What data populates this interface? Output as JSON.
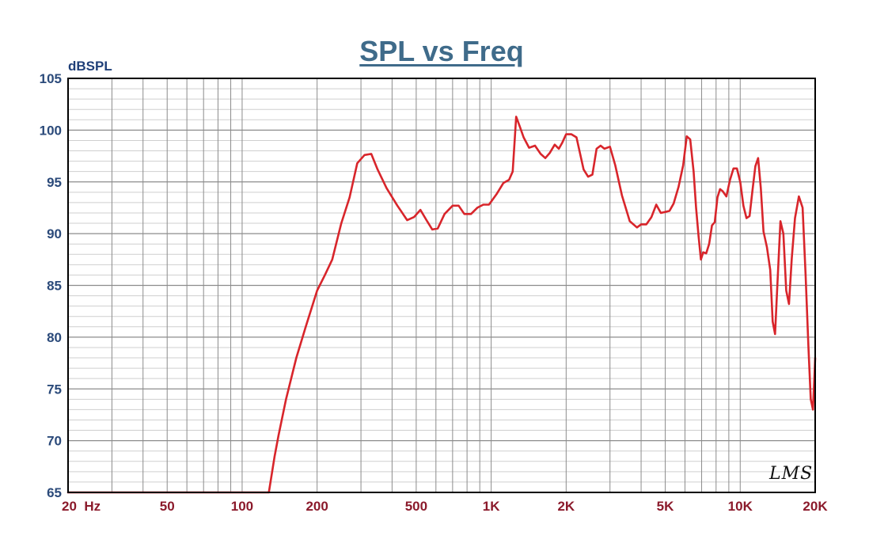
{
  "colors": {
    "title": "#3f6b8a",
    "ylabel": "#1f3f78",
    "ytick": "#2b4a7a",
    "xtick": "#8b1a2b",
    "curve": "#d8252b",
    "grid_major": "#8c8c8c",
    "grid_minor": "#cfcfcf",
    "frame": "#000000"
  },
  "watermark": "LMS",
  "chart_data": {
    "type": "line",
    "title": "SPL vs Freq",
    "ylabel": "dBSPL",
    "xlabel": "",
    "xscale": "log",
    "xlim": [
      20,
      20000
    ],
    "ylim": [
      65,
      105
    ],
    "grid": true,
    "yticks": [
      {
        "value": 105,
        "label": "105"
      },
      {
        "value": 100,
        "label": "100"
      },
      {
        "value": 95,
        "label": "95"
      },
      {
        "value": 90,
        "label": "90"
      },
      {
        "value": 85,
        "label": "85"
      },
      {
        "value": 80,
        "label": "80"
      },
      {
        "value": 75,
        "label": "75"
      },
      {
        "value": 70,
        "label": "70"
      },
      {
        "value": 65,
        "label": "65"
      }
    ],
    "xticks": [
      {
        "value": 20,
        "label": "20  Hz"
      },
      {
        "value": 50,
        "label": "50"
      },
      {
        "value": 100,
        "label": "100"
      },
      {
        "value": 200,
        "label": "200"
      },
      {
        "value": 500,
        "label": "500"
      },
      {
        "value": 1000,
        "label": "1K"
      },
      {
        "value": 2000,
        "label": "2K"
      },
      {
        "value": 5000,
        "label": "5K"
      },
      {
        "value": 10000,
        "label": "10K"
      },
      {
        "value": 20000,
        "label": "20K"
      }
    ],
    "series": [
      {
        "x": [
          20,
          30,
          50,
          80,
          120,
          128,
          135,
          140,
          150,
          165,
          180,
          200,
          215,
          230,
          250,
          270,
          290,
          310,
          330,
          350,
          380,
          420,
          460,
          490,
          520,
          550,
          580,
          610,
          650,
          700,
          740,
          780,
          830,
          880,
          930,
          980,
          1050,
          1120,
          1180,
          1220,
          1260,
          1300,
          1350,
          1420,
          1500,
          1580,
          1650,
          1720,
          1800,
          1870,
          1930,
          2000,
          2100,
          2200,
          2350,
          2450,
          2550,
          2650,
          2750,
          2850,
          3000,
          3150,
          3350,
          3600,
          3850,
          4000,
          4200,
          4400,
          4600,
          4800,
          5000,
          5200,
          5400,
          5650,
          5900,
          6100,
          6300,
          6500,
          6650,
          6800,
          6950,
          7100,
          7300,
          7500,
          7700,
          7900,
          8100,
          8300,
          8500,
          8800,
          9100,
          9400,
          9700,
          10000,
          10300,
          10600,
          10900,
          11200,
          11500,
          11800,
          12100,
          12400,
          12800,
          13200,
          13500,
          13800,
          14100,
          14500,
          14900,
          15300,
          15700,
          16100,
          16600,
          17200,
          17800,
          18300,
          18800,
          19200,
          19600,
          20000
        ],
        "y": [
          65,
          65,
          65,
          65,
          65,
          65,
          68.5,
          70.5,
          74,
          78,
          81,
          84.5,
          86,
          87.5,
          91,
          93.5,
          96.8,
          97.6,
          97.7,
          96.2,
          94.4,
          92.7,
          91.3,
          91.6,
          92.3,
          91.3,
          90.4,
          90.5,
          91.9,
          92.7,
          92.7,
          91.9,
          91.9,
          92.5,
          92.8,
          92.8,
          93.8,
          94.9,
          95.2,
          96,
          101.3,
          100.4,
          99.3,
          98.3,
          98.5,
          97.7,
          97.3,
          97.8,
          98.6,
          98.2,
          98.8,
          99.6,
          99.6,
          99.3,
          96.2,
          95.5,
          95.7,
          98.2,
          98.5,
          98.2,
          98.4,
          96.6,
          93.7,
          91.2,
          90.6,
          90.9,
          90.9,
          91.6,
          92.8,
          92,
          92.1,
          92.2,
          92.9,
          94.5,
          96.6,
          99.4,
          99.1,
          96,
          92.5,
          89.8,
          87.5,
          88.2,
          88.1,
          89,
          90.8,
          91.1,
          93.5,
          94.3,
          94.1,
          93.6,
          95.2,
          96.3,
          96.3,
          95,
          92.7,
          91.5,
          91.7,
          94.2,
          96.5,
          97.3,
          94.4,
          90.2,
          88.7,
          86.5,
          81.5,
          80.3,
          85,
          91.2,
          90,
          84.5,
          83.2,
          87.6,
          91.5,
          93.6,
          92.5,
          86,
          79,
          74,
          73,
          78
        ]
      }
    ]
  }
}
